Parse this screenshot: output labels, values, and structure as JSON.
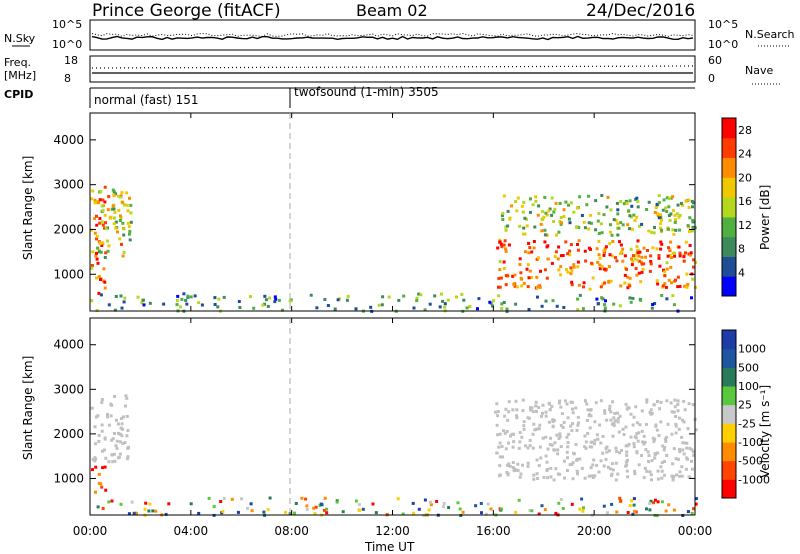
{
  "header": {
    "title": "Prince George (fitACF)",
    "beam": "Beam 02",
    "date": "24/Dec/2016"
  },
  "noise_panel": {
    "left_label": "N.Sky",
    "left_ticks": [
      "10^5",
      "10^0"
    ],
    "right_label": "N.Search",
    "right_ticks": [
      "10^5",
      "10^0"
    ]
  },
  "freq_panel": {
    "left_label_line1": "Freq.",
    "left_label_line2": "[MHz]",
    "left_ticks": [
      "18",
      "8"
    ],
    "right_label": "Nave",
    "right_ticks": [
      "60",
      "0"
    ]
  },
  "cpid_panel": {
    "label": "CPID",
    "segments": [
      {
        "start_hour": 0,
        "text": "normal (fast) 151"
      },
      {
        "start_hour": 8,
        "text": "twofsound (1-min) 3505"
      }
    ]
  },
  "colors": {
    "power_scale": [
      "#0000ff",
      "#1f4e96",
      "#3d8a5c",
      "#4fb040",
      "#b4d81e",
      "#f0c800",
      "#ff8c00",
      "#ff3c00",
      "#ff0000"
    ],
    "velocity_scale": [
      "#ff0000",
      "#ff4500",
      "#ff8c00",
      "#ffd000",
      "#c8c8c8",
      "#5ac83c",
      "#287a5a",
      "#1e56a0",
      "#1e3ca8"
    ],
    "ground_scatter": "#c0c0c0"
  },
  "chart_data": [
    {
      "type": "heatmap",
      "panel": "power",
      "xlabel": "",
      "ylabel": "Slant Range [km]",
      "x_ticks": [
        "00:00",
        "04:00",
        "08:00",
        "12:00",
        "16:00",
        "20:00",
        "00:00"
      ],
      "xlim_hours": [
        0,
        24
      ],
      "ylim_km": [
        180,
        4600
      ],
      "y_ticks": [
        1000,
        2000,
        3000,
        4000
      ],
      "colorbar": {
        "label": "Power [dB]",
        "ticks": [
          4,
          8,
          12,
          16,
          20,
          24,
          28
        ],
        "range": [
          0,
          30
        ]
      },
      "regions": [
        {
          "t0": 0.0,
          "t1": 0.6,
          "r0": 600,
          "r1": 2900,
          "level": 0.75
        },
        {
          "t0": 0.2,
          "t1": 1.3,
          "r0": 1400,
          "r1": 3000,
          "level": 0.55
        },
        {
          "t0": 0.8,
          "t1": 1.6,
          "r0": 1800,
          "r1": 2900,
          "level": 0.5
        },
        {
          "t0": 16.1,
          "t1": 24.0,
          "r0": 700,
          "r1": 1800,
          "level": 0.8
        },
        {
          "t0": 16.3,
          "t1": 24.0,
          "r0": 1900,
          "r1": 2800,
          "level": 0.45
        },
        {
          "t0": 0.0,
          "t1": 24.0,
          "r0": 200,
          "r1": 600,
          "level": 0.3
        }
      ]
    },
    {
      "type": "heatmap",
      "panel": "velocity",
      "xlabel": "Time UT",
      "ylabel": "Slant Range [km]",
      "x_ticks": [
        "00:00",
        "04:00",
        "08:00",
        "12:00",
        "16:00",
        "20:00",
        "00:00"
      ],
      "xlim_hours": [
        0,
        24
      ],
      "ylim_km": [
        180,
        4600
      ],
      "y_ticks": [
        1000,
        2000,
        3000,
        4000
      ],
      "colorbar": {
        "label": "Velocity [m s⁻¹]",
        "ticks": [
          "1000",
          "500",
          "100",
          "25",
          "-25",
          "-100",
          "-500",
          "-1000"
        ]
      },
      "regions": [
        {
          "t0": 0.0,
          "t1": 1.5,
          "r0": 1400,
          "r1": 2900,
          "kind": "ground"
        },
        {
          "t0": 16.0,
          "t1": 24.0,
          "r0": 1000,
          "r1": 2800,
          "kind": "ground"
        },
        {
          "t0": 0.0,
          "t1": 0.6,
          "r0": 700,
          "r1": 1300,
          "kind": "negative"
        },
        {
          "t0": 0.0,
          "t1": 24.0,
          "r0": 200,
          "r1": 600,
          "kind": "mixed"
        }
      ]
    }
  ]
}
